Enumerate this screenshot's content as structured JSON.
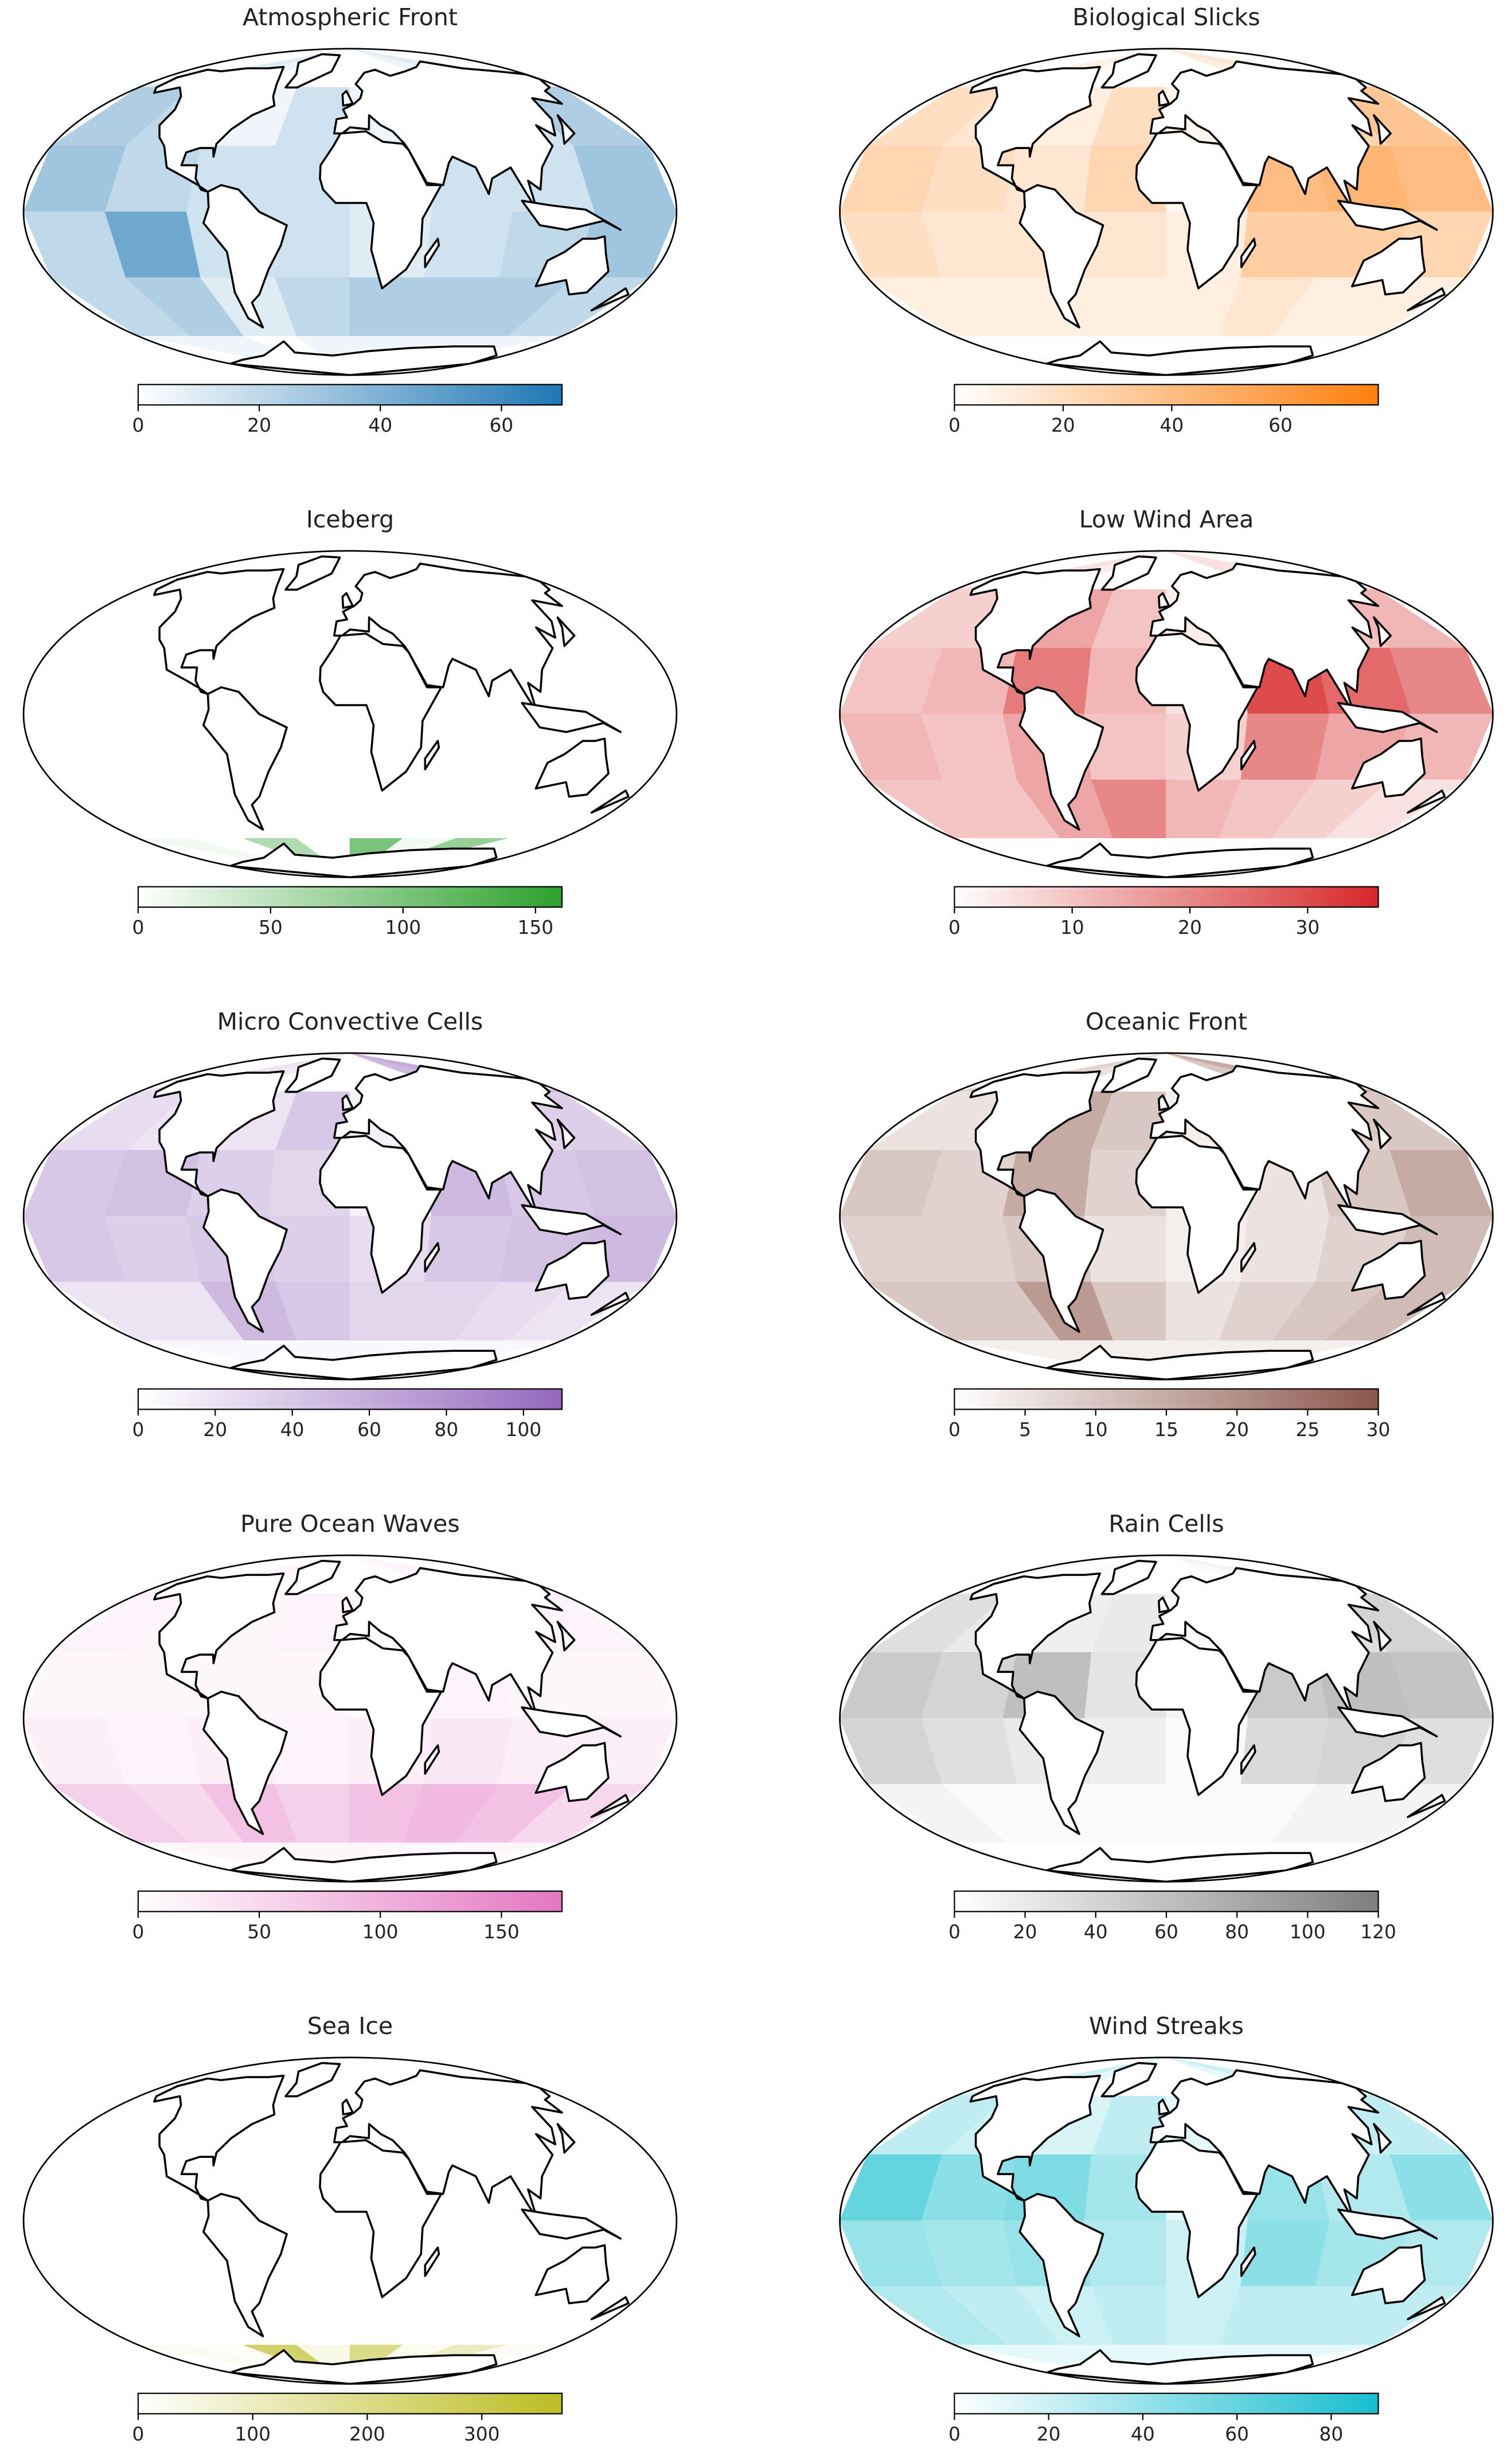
{
  "chart_data": [
    {
      "type": "map",
      "title": "Atmospheric Front",
      "color": "#1f77b4",
      "clim": [
        0,
        70
      ],
      "cticks": [
        0,
        20,
        40,
        60
      ],
      "values": [
        [
          10,
          5,
          0,
          0,
          0,
          0,
          5,
          10
        ],
        [
          25,
          20,
          5,
          15,
          5,
          5,
          15,
          25
        ],
        [
          30,
          20,
          15,
          15,
          10,
          15,
          15,
          30
        ],
        [
          20,
          45,
          15,
          15,
          10,
          15,
          20,
          30
        ],
        [
          20,
          25,
          10,
          20,
          25,
          25,
          25,
          20
        ],
        [
          5,
          5,
          0,
          5,
          5,
          5,
          5,
          5
        ]
      ]
    },
    {
      "type": "map",
      "title": "Biological Slicks",
      "color": "#ff7f0e",
      "clim": [
        0,
        78
      ],
      "cticks": [
        0,
        20,
        40,
        60
      ],
      "values": [
        [
          10,
          5,
          0,
          0,
          0,
          0,
          10,
          15
        ],
        [
          20,
          15,
          10,
          20,
          5,
          10,
          25,
          35
        ],
        [
          25,
          20,
          15,
          25,
          5,
          40,
          45,
          40
        ],
        [
          20,
          15,
          15,
          15,
          10,
          30,
          30,
          25
        ],
        [
          10,
          10,
          10,
          10,
          10,
          15,
          10,
          10
        ],
        [
          0,
          0,
          0,
          0,
          0,
          0,
          0,
          0
        ]
      ]
    },
    {
      "type": "map",
      "title": "Iceberg",
      "color": "#2ca02c",
      "clim": [
        0,
        160
      ],
      "cticks": [
        0,
        50,
        100,
        150
      ],
      "values": [
        [
          0,
          0,
          0,
          0,
          0,
          0,
          0,
          0
        ],
        [
          0,
          0,
          0,
          0,
          0,
          0,
          0,
          0
        ],
        [
          0,
          0,
          0,
          0,
          0,
          0,
          0,
          0
        ],
        [
          0,
          0,
          0,
          0,
          0,
          0,
          0,
          0
        ],
        [
          0,
          0,
          0,
          0,
          0,
          0,
          0,
          0
        ],
        [
          10,
          0,
          60,
          0,
          100,
          10,
          80,
          0
        ]
      ]
    },
    {
      "type": "map",
      "title": "Low Wind Area",
      "color": "#d62728",
      "clim": [
        0,
        36
      ],
      "cticks": [
        0,
        10,
        20,
        30
      ],
      "values": [
        [
          5,
          3,
          0,
          0,
          0,
          0,
          5,
          5
        ],
        [
          8,
          8,
          15,
          10,
          3,
          5,
          10,
          12
        ],
        [
          10,
          12,
          22,
          12,
          5,
          30,
          25,
          20
        ],
        [
          12,
          10,
          15,
          10,
          8,
          20,
          15,
          12
        ],
        [
          10,
          10,
          15,
          20,
          12,
          10,
          8,
          5
        ],
        [
          0,
          0,
          0,
          0,
          0,
          0,
          0,
          0
        ]
      ]
    },
    {
      "type": "map",
      "title": "Micro Convective Cells",
      "color": "#9467bd",
      "clim": [
        0,
        110
      ],
      "cticks": [
        0,
        20,
        40,
        60,
        80,
        100
      ],
      "values": [
        [
          20,
          15,
          0,
          0,
          0,
          0,
          50,
          60
        ],
        [
          25,
          20,
          20,
          40,
          10,
          20,
          30,
          35
        ],
        [
          40,
          45,
          35,
          30,
          10,
          50,
          40,
          45
        ],
        [
          40,
          35,
          40,
          35,
          25,
          40,
          45,
          50
        ],
        [
          20,
          20,
          50,
          40,
          30,
          30,
          25,
          20
        ],
        [
          5,
          5,
          5,
          5,
          5,
          5,
          5,
          5
        ]
      ]
    },
    {
      "type": "map",
      "title": "Oceanic Front",
      "color": "#8c564b",
      "clim": [
        0,
        30
      ],
      "cticks": [
        0,
        5,
        10,
        15,
        20,
        25,
        30
      ],
      "values": [
        [
          8,
          5,
          0,
          0,
          0,
          0,
          10,
          15
        ],
        [
          5,
          5,
          15,
          10,
          3,
          5,
          8,
          10
        ],
        [
          10,
          8,
          15,
          8,
          3,
          5,
          10,
          15
        ],
        [
          8,
          8,
          10,
          5,
          3,
          5,
          8,
          12
        ],
        [
          10,
          10,
          18,
          10,
          5,
          8,
          10,
          12
        ],
        [
          3,
          3,
          3,
          3,
          3,
          3,
          3,
          3
        ]
      ]
    },
    {
      "type": "map",
      "title": "Pure Ocean Waves",
      "color": "#e377c2",
      "clim": [
        0,
        175
      ],
      "cticks": [
        0,
        50,
        100,
        150
      ],
      "values": [
        [
          15,
          10,
          0,
          0,
          0,
          0,
          10,
          15
        ],
        [
          15,
          10,
          10,
          15,
          5,
          10,
          10,
          15
        ],
        [
          10,
          10,
          10,
          10,
          5,
          15,
          10,
          10
        ],
        [
          20,
          15,
          20,
          15,
          20,
          30,
          20,
          20
        ],
        [
          60,
          50,
          80,
          60,
          80,
          90,
          80,
          50
        ],
        [
          10,
          10,
          10,
          10,
          10,
          10,
          10,
          10
        ]
      ]
    },
    {
      "type": "map",
      "title": "Rain Cells",
      "color": "#7f7f7f",
      "clim": [
        0,
        120
      ],
      "cticks": [
        0,
        20,
        40,
        60,
        80,
        100,
        120
      ],
      "values": [
        [
          5,
          5,
          0,
          0,
          0,
          0,
          5,
          10
        ],
        [
          30,
          20,
          15,
          20,
          5,
          5,
          30,
          40
        ],
        [
          50,
          40,
          60,
          25,
          10,
          50,
          60,
          55
        ],
        [
          40,
          30,
          20,
          15,
          5,
          35,
          40,
          30
        ],
        [
          10,
          5,
          5,
          5,
          5,
          5,
          10,
          10
        ],
        [
          0,
          0,
          0,
          0,
          0,
          0,
          0,
          0
        ]
      ]
    },
    {
      "type": "map",
      "title": "Sea Ice",
      "color": "#bcbd22",
      "clim": [
        0,
        370
      ],
      "cticks": [
        0,
        100,
        200,
        300
      ],
      "values": [
        [
          0,
          0,
          0,
          0,
          0,
          0,
          0,
          0
        ],
        [
          0,
          0,
          0,
          0,
          0,
          0,
          0,
          0
        ],
        [
          0,
          0,
          0,
          0,
          0,
          0,
          0,
          0
        ],
        [
          0,
          0,
          0,
          0,
          0,
          0,
          0,
          0
        ],
        [
          0,
          0,
          0,
          0,
          0,
          0,
          0,
          0
        ],
        [
          20,
          10,
          250,
          40,
          200,
          30,
          100,
          20
        ]
      ]
    },
    {
      "type": "map",
      "title": "Wind Streaks",
      "color": "#17becf",
      "clim": [
        0,
        90
      ],
      "cticks": [
        0,
        20,
        40,
        60,
        80
      ],
      "values": [
        [
          20,
          10,
          0,
          0,
          0,
          0,
          10,
          20
        ],
        [
          25,
          20,
          15,
          25,
          10,
          15,
          20,
          25
        ],
        [
          60,
          45,
          50,
          35,
          10,
          40,
          30,
          45
        ],
        [
          40,
          35,
          40,
          30,
          20,
          45,
          35,
          30
        ],
        [
          30,
          25,
          20,
          25,
          20,
          25,
          25,
          25
        ],
        [
          10,
          10,
          10,
          10,
          10,
          10,
          10,
          10
        ]
      ]
    }
  ]
}
